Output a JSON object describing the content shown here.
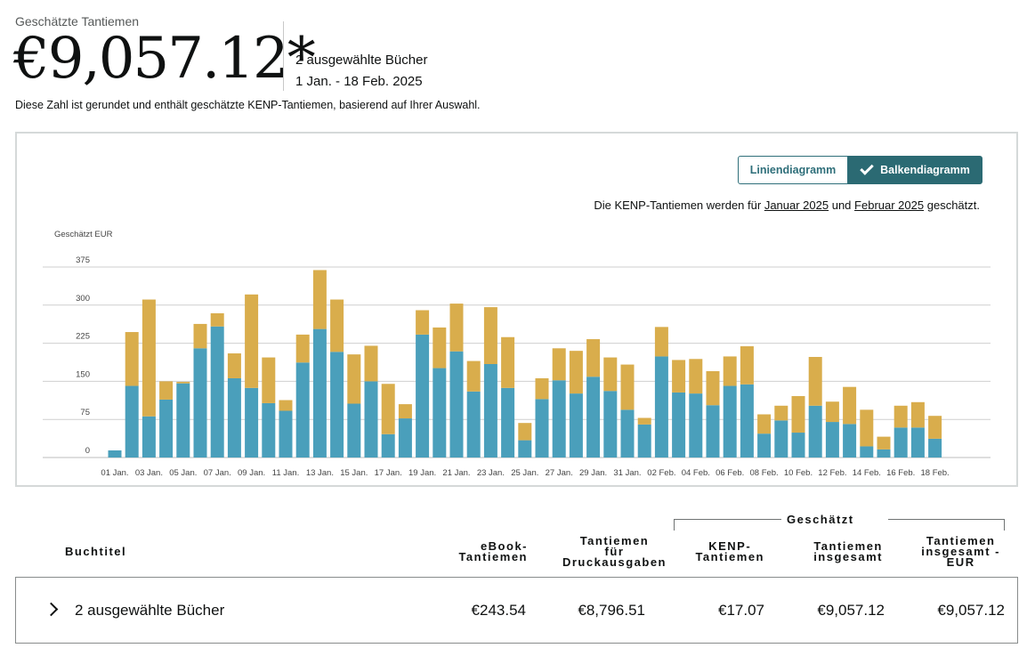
{
  "header": {
    "label": "Geschätzte Tantiemen",
    "amount": "€9,057.12*",
    "selection": "2 ausgewählte Bücher",
    "date_range": "1 Jan. - 18 Feb. 2025",
    "disclaimer": "Diese Zahl ist gerundet und enthält geschätzte KENP-Tantiemen, basierend auf Ihrer Auswahl."
  },
  "toggle": {
    "line_label": "Liniendiagramm",
    "bar_label": "Balkendiagramm",
    "active": "bar"
  },
  "kenp_note": {
    "prefix": "Die KENP-Tantiemen werden für",
    "link1": "Januar 2025",
    "middle": "und",
    "link2": "Februar 2025",
    "suffix": "geschätzt."
  },
  "colors": {
    "ebook": "#4a9fbb",
    "print": "#d9ad4c",
    "accent": "#2b6a73"
  },
  "chart_data": {
    "type": "bar",
    "stacked": true,
    "ylabel": "Geschätzt EUR",
    "ylim": [
      0,
      375
    ],
    "yticks": [
      0,
      75,
      150,
      225,
      300,
      375
    ],
    "grid": true,
    "categories": [
      "01 Jan.",
      "02 Jan.",
      "03 Jan.",
      "04 Jan.",
      "05 Jan.",
      "06 Jan.",
      "07 Jan.",
      "08 Jan.",
      "09 Jan.",
      "10 Jan.",
      "11 Jan.",
      "12 Jan.",
      "13 Jan.",
      "14 Jan.",
      "15 Jan.",
      "16 Jan.",
      "17 Jan.",
      "18 Jan.",
      "19 Jan.",
      "20 Jan.",
      "21 Jan.",
      "22 Jan.",
      "23 Jan.",
      "24 Jan.",
      "25 Jan.",
      "26 Jan.",
      "27 Jan.",
      "28 Jan.",
      "29 Jan.",
      "30 Jan.",
      "31 Jan.",
      "01 Feb.",
      "02 Feb.",
      "03 Feb.",
      "04 Feb.",
      "05 Feb.",
      "06 Feb.",
      "07 Feb.",
      "08 Feb.",
      "09 Feb.",
      "10 Feb.",
      "11 Feb.",
      "12 Feb.",
      "13 Feb.",
      "14 Feb.",
      "15 Feb.",
      "16 Feb.",
      "17 Feb.",
      "18 Feb."
    ],
    "xtick_labels": [
      "01 Jan.",
      "03 Jan.",
      "05 Jan.",
      "07 Jan.",
      "09 Jan.",
      "11 Jan.",
      "13 Jan.",
      "15 Jan.",
      "17 Jan.",
      "19 Jan.",
      "21 Jan.",
      "23 Jan.",
      "25 Jan.",
      "27 Jan.",
      "29 Jan.",
      "31 Jan.",
      "02 Feb.",
      "04 Feb.",
      "06 Feb.",
      "08 Feb.",
      "10 Feb.",
      "12 Feb.",
      "14 Feb.",
      "16 Feb.",
      "18 Feb."
    ],
    "series": [
      {
        "color": "#4a9fbb",
        "values": [
          14,
          141,
          81,
          114,
          146,
          215,
          258,
          156,
          137,
          107,
          92,
          187,
          253,
          208,
          106,
          150,
          46,
          77,
          242,
          176,
          209,
          130,
          184,
          137,
          34,
          115,
          152,
          126,
          159,
          131,
          94,
          65,
          199,
          128,
          126,
          103,
          141,
          144,
          47,
          73,
          49,
          102,
          70,
          66,
          22,
          16,
          59,
          59,
          37
        ]
      },
      {
        "color": "#d9ad4c",
        "values": [
          0,
          106,
          230,
          36,
          3,
          48,
          26,
          49,
          184,
          90,
          21,
          55,
          116,
          103,
          97,
          70,
          99,
          28,
          48,
          80,
          94,
          60,
          112,
          100,
          34,
          41,
          63,
          84,
          74,
          66,
          89,
          13,
          58,
          64,
          68,
          67,
          58,
          75,
          38,
          29,
          72,
          96,
          40,
          73,
          72,
          25,
          43,
          50,
          45
        ]
      }
    ]
  },
  "table": {
    "group_label": "Geschätzt",
    "headers": {
      "title": "Buchtitel",
      "ebook_l1": "eBook-",
      "ebook_l2": "Tantiemen",
      "print_l1": "Tantiemen",
      "print_l2": "für",
      "print_l3": "Druckausgaben",
      "kenp_l1": "KENP-",
      "kenp_l2": "Tantiemen",
      "total_l1": "Tantiemen",
      "total_l2": "insgesamt",
      "eur_l1": "Tantiemen",
      "eur_l2": "insgesamt -",
      "eur_l3": "EUR"
    },
    "row": {
      "title": "2 ausgewählte Bücher",
      "ebook": "€243.54",
      "print": "€8,796.51",
      "kenp": "€17.07",
      "total": "€9,057.12",
      "total_eur": "€9,057.12"
    }
  }
}
